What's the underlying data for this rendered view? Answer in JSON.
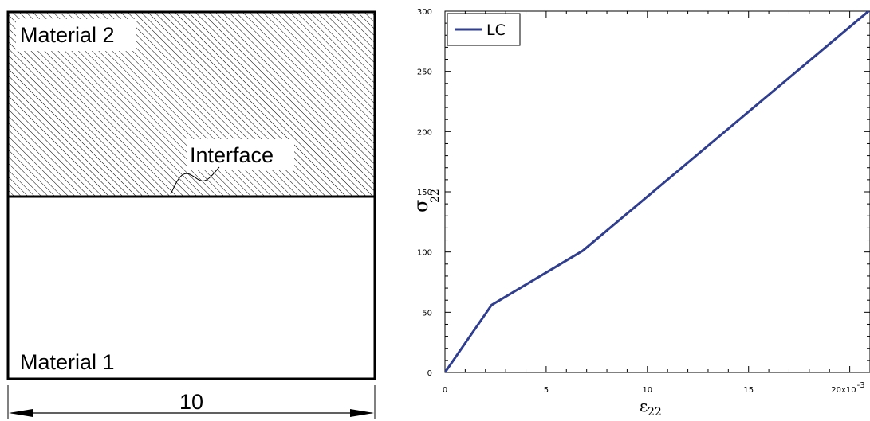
{
  "diagram": {
    "top_label": "Material 2",
    "bottom_label": "Material 1",
    "interface_label": "Interface",
    "width_label": "10"
  },
  "chart_data": {
    "type": "line",
    "series": [
      {
        "name": "LC",
        "color": "#2f3e8f",
        "x": [
          0,
          0.0023,
          0.0068,
          0.021
        ],
        "y": [
          0,
          56,
          101,
          301
        ]
      }
    ],
    "xlabel": "ε",
    "xlabel_sub": "22",
    "ylabel": "σ",
    "ylabel_sub": "22",
    "xlim": [
      0,
      0.021
    ],
    "ylim": [
      0,
      300
    ],
    "x_ticks": [
      {
        "value": 0,
        "label": "0"
      },
      {
        "value": 0.005,
        "label": "5"
      },
      {
        "value": 0.01,
        "label": "10"
      },
      {
        "value": 0.015,
        "label": "15"
      },
      {
        "value": 0.02,
        "label": "20x10"
      }
    ],
    "x_tick_exponent": "-3",
    "y_ticks": [
      {
        "value": 0,
        "label": "0"
      },
      {
        "value": 50,
        "label": "50"
      },
      {
        "value": 100,
        "label": "100"
      },
      {
        "value": 150,
        "label": "150"
      },
      {
        "value": 200,
        "label": "200"
      },
      {
        "value": 250,
        "label": "250"
      },
      {
        "value": 300,
        "label": "300"
      }
    ],
    "grid": false,
    "legend_position": "top-left"
  }
}
